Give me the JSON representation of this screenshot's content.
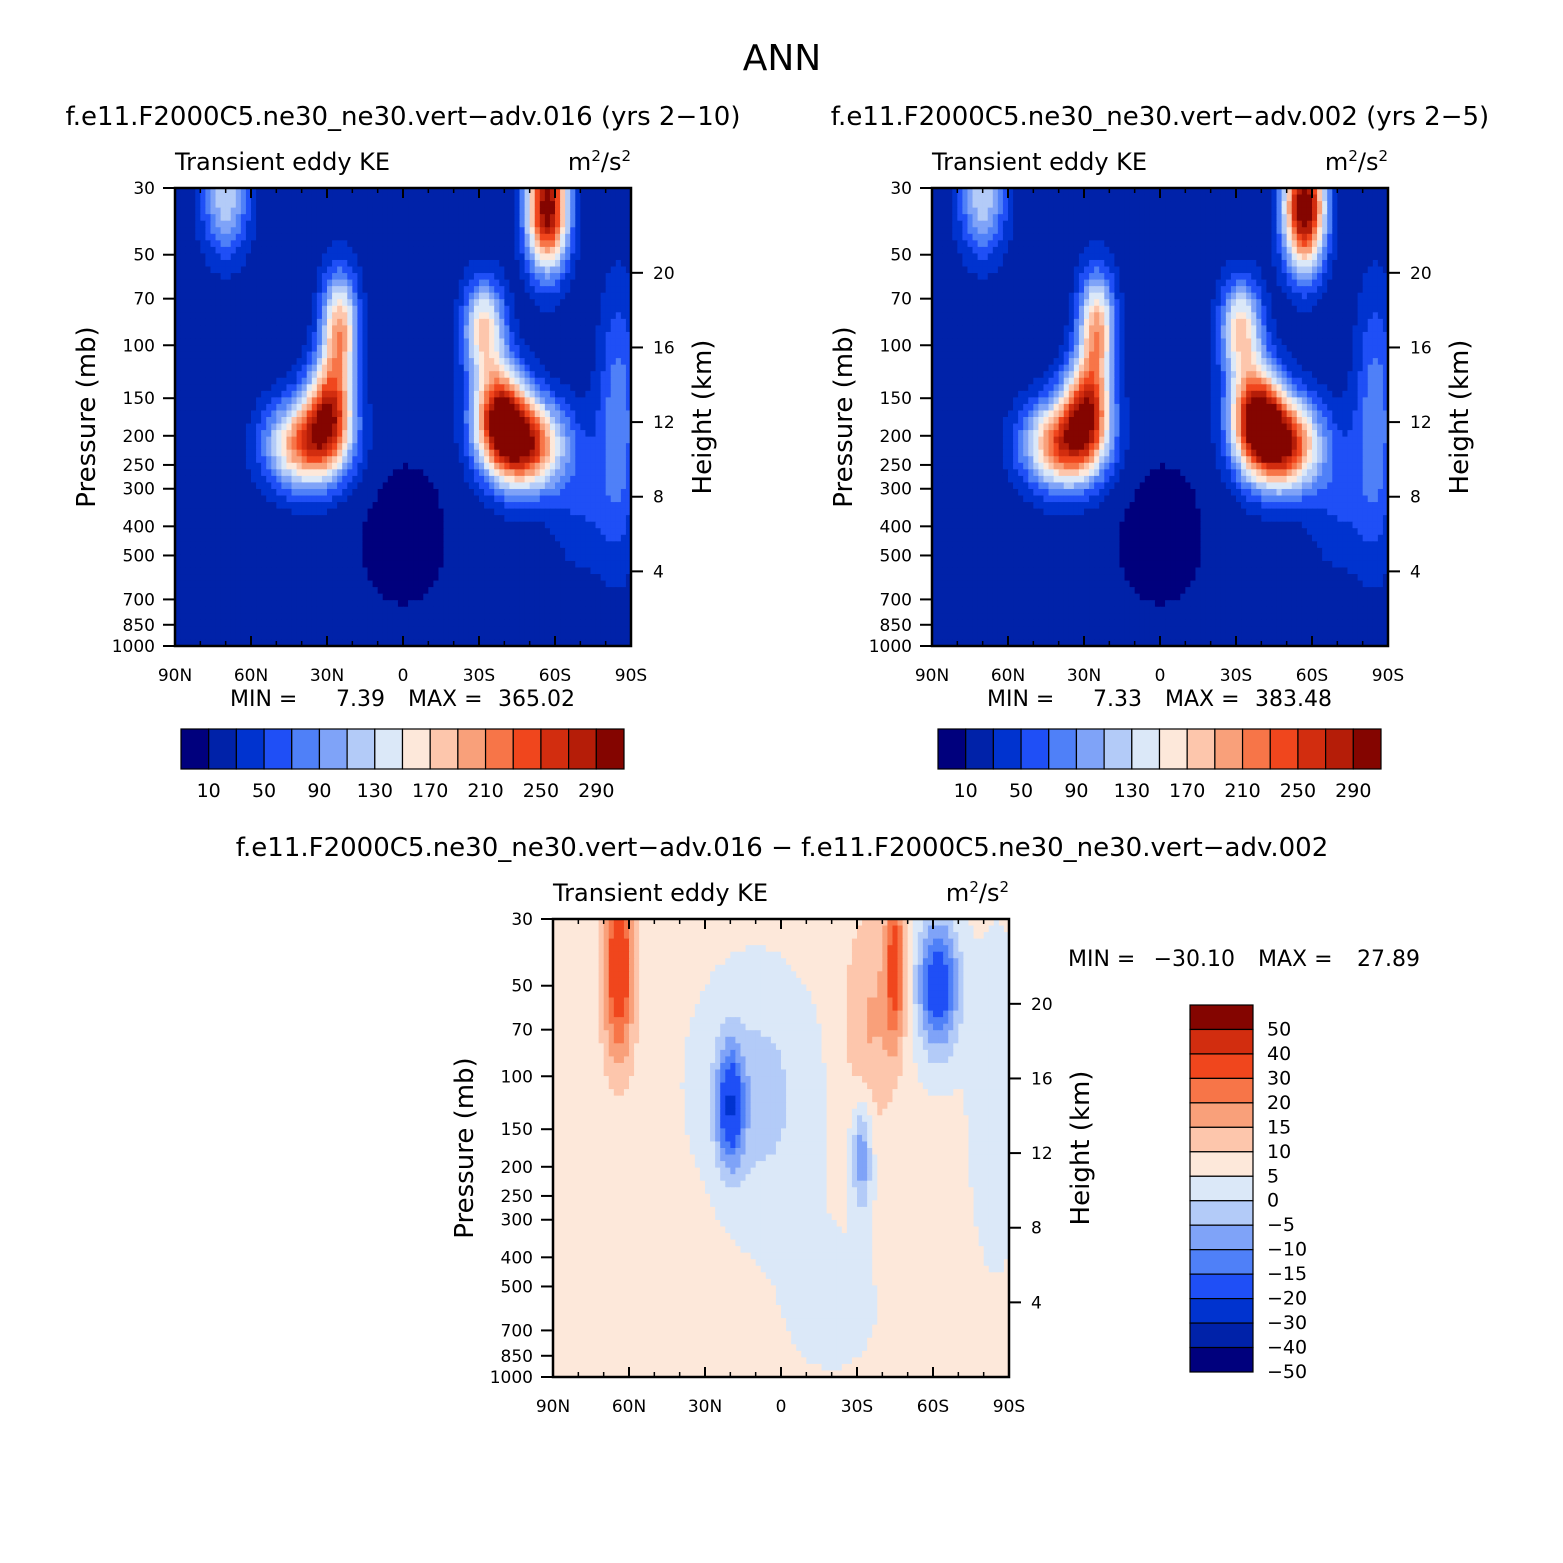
{
  "page": {
    "title": "ANN"
  },
  "palettes": {
    "ke": [
      "#00007d",
      "#0022a9",
      "#0033cf",
      "#1f4ff6",
      "#4f80f8",
      "#7fa3f8",
      "#b3cbf8",
      "#dbe8f8",
      "#fde8da",
      "#fdc6ac",
      "#f9a07a",
      "#f77548",
      "#f0461d",
      "#d22d0f",
      "#b51d08",
      "#840500"
    ],
    "diff": [
      "#00007d",
      "#0022a9",
      "#0033cf",
      "#1f4ff6",
      "#4f80f8",
      "#7fa3f8",
      "#b3cbf8",
      "#dbe8f8",
      "#fde8da",
      "#fdc6ac",
      "#f9a07a",
      "#f77548",
      "#f0461d",
      "#d22d0f",
      "#840500"
    ]
  },
  "chart_data": [
    {
      "type": "heatmap",
      "id": "case1",
      "title": "f.e11.F2000C5.ne30_ne30.vert−adv.016 (yrs 2−10)",
      "left_string": "Transient eddy KE",
      "units": {
        "base": "m",
        "sup1": "2",
        "mid": "/s",
        "sup2": "2"
      },
      "xlabel": "",
      "ylabel": "Pressure (mb)",
      "ylabel_right": "Height (km)",
      "x_ticks": [
        "90N",
        "60N",
        "30N",
        "0",
        "30S",
        "60S",
        "90S"
      ],
      "x_range": [
        90,
        -90
      ],
      "y_ticks": [
        "30",
        "50",
        "70",
        "100",
        "150",
        "200",
        "250",
        "300",
        "400",
        "500",
        "700",
        "850",
        "1000"
      ],
      "y_range_mb": [
        30,
        1000
      ],
      "height_ticks": [
        "20",
        "16",
        "12",
        "8",
        "4"
      ],
      "stats": {
        "min_label": "MIN =",
        "min": "7.39",
        "max_label": "MAX =",
        "max": "365.02"
      },
      "colorbar": {
        "labels": [
          "10",
          "50",
          "90",
          "130",
          "170",
          "210",
          "250",
          "290"
        ],
        "levels": [
          10,
          30,
          50,
          70,
          90,
          110,
          130,
          150,
          170,
          190,
          210,
          230,
          250,
          270,
          290
        ]
      },
      "grid": {
        "nlat": 37,
        "nlev": 13,
        "field": "transient_eddy_ke",
        "peak_scale": 1.0
      }
    },
    {
      "type": "heatmap",
      "id": "case2",
      "title": "f.e11.F2000C5.ne30_ne30.vert−adv.002 (yrs 2−5)",
      "left_string": "Transient eddy KE",
      "units": {
        "base": "m",
        "sup1": "2",
        "mid": "/s",
        "sup2": "2"
      },
      "xlabel": "",
      "ylabel": "Pressure (mb)",
      "ylabel_right": "Height (km)",
      "x_ticks": [
        "90N",
        "60N",
        "30N",
        "0",
        "30S",
        "60S",
        "90S"
      ],
      "x_range": [
        90,
        -90
      ],
      "y_ticks": [
        "30",
        "50",
        "70",
        "100",
        "150",
        "200",
        "250",
        "300",
        "400",
        "500",
        "700",
        "850",
        "1000"
      ],
      "y_range_mb": [
        30,
        1000
      ],
      "height_ticks": [
        "20",
        "16",
        "12",
        "8",
        "4"
      ],
      "stats": {
        "min_label": "MIN =",
        "min": "7.33",
        "max_label": "MAX =",
        "max": "383.48"
      },
      "colorbar": {
        "labels": [
          "10",
          "50",
          "90",
          "130",
          "170",
          "210",
          "250",
          "290"
        ],
        "levels": [
          10,
          30,
          50,
          70,
          90,
          110,
          130,
          150,
          170,
          190,
          210,
          230,
          250,
          270,
          290
        ]
      },
      "grid": {
        "nlat": 37,
        "nlev": 13,
        "field": "transient_eddy_ke",
        "peak_scale": 1.05
      }
    },
    {
      "type": "heatmap",
      "id": "diff",
      "title": "f.e11.F2000C5.ne30_ne30.vert−adv.016 − f.e11.F2000C5.ne30_ne30.vert−adv.002",
      "left_string": "Transient eddy KE",
      "units": {
        "base": "m",
        "sup1": "2",
        "mid": "/s",
        "sup2": "2"
      },
      "xlabel": "",
      "ylabel": "Pressure (mb)",
      "ylabel_right": "Height (km)",
      "x_ticks": [
        "90N",
        "60N",
        "30N",
        "0",
        "30S",
        "60S",
        "90S"
      ],
      "x_range": [
        90,
        -90
      ],
      "y_ticks": [
        "30",
        "50",
        "70",
        "100",
        "150",
        "200",
        "250",
        "300",
        "400",
        "500",
        "700",
        "850",
        "1000"
      ],
      "y_range_mb": [
        30,
        1000
      ],
      "height_ticks": [
        "20",
        "16",
        "12",
        "8",
        "4"
      ],
      "stats": {
        "min_label": "MIN =",
        "min": "−30.10",
        "max_label": "MAX =",
        "max": "27.89"
      },
      "colorbar": {
        "labels": [
          "50",
          "40",
          "30",
          "20",
          "15",
          "10",
          "5",
          "0",
          "−5",
          "−10",
          "−15",
          "−20",
          "−30",
          "−40",
          "−50"
        ],
        "levels": [
          -50,
          -40,
          -30,
          -20,
          -15,
          -10,
          -5,
          0,
          5,
          10,
          15,
          20,
          30,
          40,
          50
        ]
      },
      "grid": {
        "nlat": 37,
        "nlev": 13,
        "field": "difference"
      }
    }
  ]
}
